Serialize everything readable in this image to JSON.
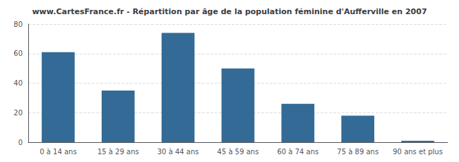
{
  "chart_data": {
    "type": "bar",
    "title": "www.CartesFrance.fr - Répartition par âge de la population féminine d'Aufferville en 2007",
    "categories": [
      "0 à 14 ans",
      "15 à 29 ans",
      "30 à 44 ans",
      "45 à 59 ans",
      "60 à 74 ans",
      "75 à 89 ans",
      "90 ans et plus"
    ],
    "values": [
      61,
      35,
      74,
      50,
      26,
      18,
      1
    ],
    "color": "#336b96",
    "ylim": [
      0,
      80
    ],
    "yticks": [
      0,
      20,
      40,
      60,
      80
    ],
    "grid": true
  }
}
